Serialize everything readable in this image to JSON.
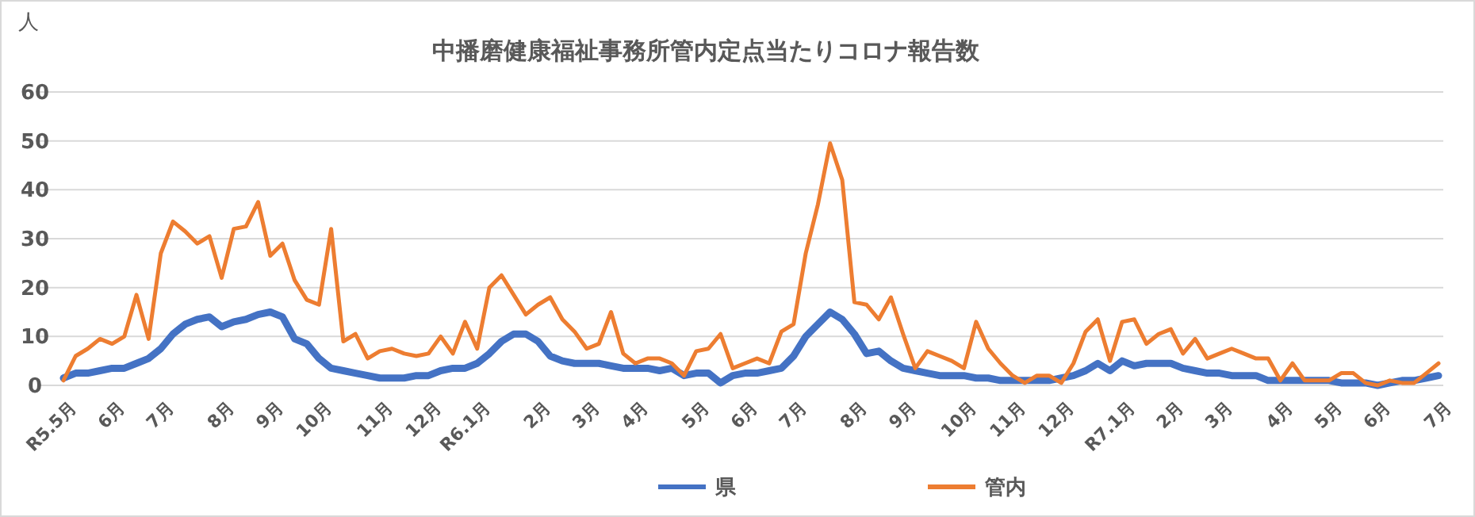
{
  "chart_data": {
    "type": "line",
    "title": "中播磨健康福祉事務所管内定点当たりコロナ報告数",
    "ylabel": "人",
    "categories": [
      "R5.5月",
      null,
      null,
      null,
      "6月",
      null,
      null,
      null,
      "7月",
      null,
      null,
      null,
      null,
      "8月",
      null,
      null,
      null,
      "9月",
      null,
      null,
      null,
      "10月",
      null,
      null,
      null,
      null,
      "11月",
      null,
      null,
      null,
      "12月",
      null,
      null,
      null,
      "R6.1月",
      null,
      null,
      null,
      null,
      "2月",
      null,
      null,
      null,
      "3月",
      null,
      null,
      null,
      "4月",
      null,
      null,
      null,
      null,
      "5月",
      null,
      null,
      null,
      "6月",
      null,
      null,
      null,
      "7月",
      null,
      null,
      null,
      null,
      "8月",
      null,
      null,
      null,
      "9月",
      null,
      null,
      null,
      null,
      "10月",
      null,
      null,
      null,
      "11月",
      null,
      null,
      null,
      "12月",
      null,
      null,
      null,
      null,
      "R7.1月",
      null,
      null,
      null,
      "2月",
      null,
      null,
      null,
      "3月",
      null,
      null,
      null,
      null,
      "4月",
      null,
      null,
      null,
      "5月",
      null,
      null,
      null,
      "6月",
      null,
      null,
      null,
      null,
      "7月"
    ],
    "series": [
      {
        "name": "県",
        "color": "#4472c4",
        "values": [
          1.5,
          2.5,
          2.5,
          3,
          3.5,
          3.5,
          4.5,
          5.5,
          7.5,
          10.5,
          12.5,
          13.5,
          14,
          12,
          13,
          13.5,
          14.5,
          15,
          14,
          9.5,
          8.5,
          5.5,
          3.5,
          3,
          2.5,
          2,
          1.5,
          1.5,
          1.5,
          2,
          2,
          3,
          3.5,
          3.5,
          4.5,
          6.5,
          9,
          10.5,
          10.5,
          9,
          6,
          5,
          4.5,
          4.5,
          4.5,
          4,
          3.5,
          3.5,
          3.5,
          3,
          3.5,
          2,
          2.5,
          2.5,
          0.5,
          2,
          2.5,
          2.5,
          3,
          3.5,
          6,
          10,
          12.5,
          15,
          13.5,
          10.5,
          6.5,
          7,
          5,
          3.5,
          3,
          2.5,
          2,
          2,
          2,
          1.5,
          1.5,
          1,
          1,
          1,
          1,
          1,
          1.5,
          2,
          3,
          4.5,
          3,
          5,
          4,
          4.5,
          4.5,
          4.5,
          3.5,
          3,
          2.5,
          2.5,
          2,
          2,
          2,
          1,
          1,
          1,
          1,
          1,
          1,
          0.5,
          0.5,
          0.5,
          0,
          0.5,
          1,
          1,
          1.5,
          2
        ]
      },
      {
        "name": "管内",
        "color": "#ed7d31",
        "values": [
          1,
          6,
          7.5,
          9.5,
          8.5,
          10,
          18.5,
          9.5,
          27,
          33.5,
          31.5,
          29,
          30.5,
          22,
          32,
          32.5,
          37.5,
          26.5,
          29,
          21.5,
          17.5,
          16.5,
          32,
          9,
          10.5,
          5.5,
          7,
          7.5,
          6.5,
          6,
          6.5,
          10,
          6.5,
          13,
          7.5,
          20,
          22.5,
          18.5,
          14.5,
          16.5,
          18,
          13.5,
          11,
          7.5,
          8.5,
          15,
          6.5,
          4.5,
          5.5,
          5.5,
          4.5,
          2,
          7,
          7.5,
          10.5,
          3.5,
          4.5,
          5.5,
          4.5,
          11,
          12.5,
          27,
          37,
          49.5,
          42,
          17,
          16.5,
          13.5,
          18,
          10.5,
          3.5,
          7,
          6,
          5,
          3.5,
          13,
          7.5,
          4.5,
          2,
          0.5,
          2,
          2,
          0.5,
          4.5,
          11,
          13.5,
          5,
          13,
          13.5,
          8.5,
          10.5,
          11.5,
          6.5,
          9.5,
          5.5,
          6.5,
          7.5,
          6.5,
          5.5,
          5.5,
          1,
          4.5,
          1,
          1,
          1,
          2.5,
          2.5,
          0.5,
          0,
          1,
          0.5,
          0.5,
          2.5,
          4.5
        ]
      }
    ],
    "ylim": [
      0,
      60
    ],
    "yticks": [
      0,
      10,
      20,
      30,
      40,
      50,
      60
    ],
    "grid": "y",
    "legend": "bottom",
    "marker": "none",
    "line_style": "solid"
  }
}
